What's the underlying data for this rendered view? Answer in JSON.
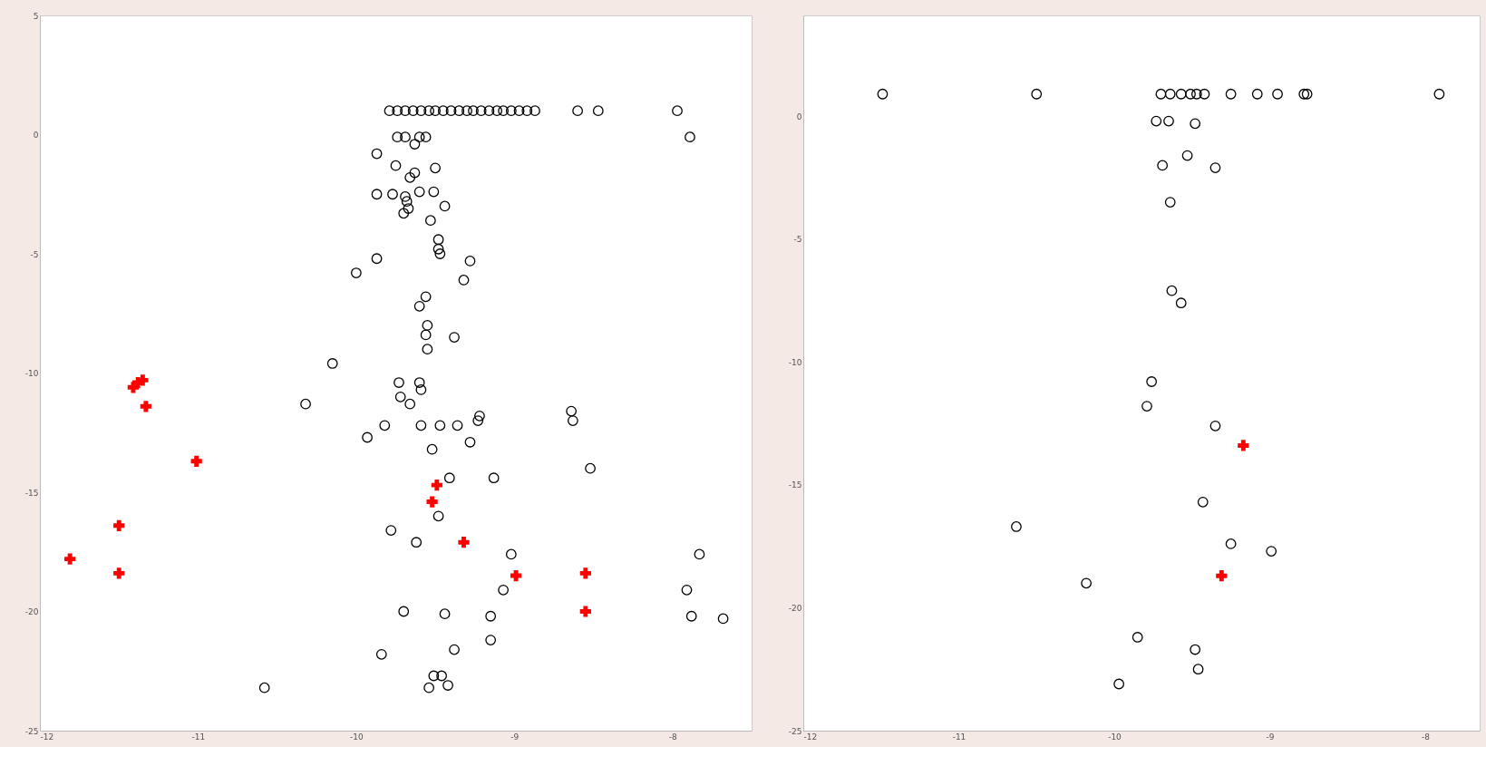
{
  "chart_data": [
    {
      "type": "scatter",
      "xlim": [
        -12,
        -7.5
      ],
      "ylim": [
        -25,
        5
      ],
      "xticks": [
        -12,
        -11,
        -10,
        -9,
        -8
      ],
      "yticks": [
        5,
        0,
        -5,
        -10,
        -15,
        -20,
        -25
      ],
      "series": [
        {
          "color": "#000000",
          "marker": "circle",
          "x": [
            -9.79,
            -9.74,
            -9.69,
            -9.64,
            -9.59,
            -9.54,
            -9.5,
            -9.45,
            -9.4,
            -9.35,
            -9.3,
            -9.26,
            -9.21,
            -9.16,
            -9.11,
            -9.07,
            -9.02,
            -8.97,
            -8.92,
            -8.87,
            -8.6,
            -8.47,
            -7.97,
            -7.89,
            -9.74,
            -9.69,
            -9.6,
            -9.56,
            -9.63,
            -9.87,
            -9.75,
            -9.5,
            -9.66,
            -9.63,
            -9.6,
            -9.51,
            -9.87,
            -9.77,
            -9.69,
            -9.44,
            -9.68,
            -9.67,
            -9.7,
            -9.53,
            -9.48,
            -9.48,
            -9.47,
            -9.28,
            -9.87,
            -10.0,
            -9.32,
            -9.56,
            -9.6,
            -9.55,
            -9.56,
            -9.38,
            -9.55,
            -10.15,
            -9.73,
            -9.6,
            -9.59,
            -9.72,
            -9.66,
            -10.32,
            -9.22,
            -9.23,
            -9.82,
            -9.59,
            -9.47,
            -9.36,
            -9.93,
            -9.28,
            -9.52,
            -8.64,
            -8.63,
            -8.52,
            -9.41,
            -9.13,
            -9.48,
            -9.78,
            -9.62,
            -9.02,
            -9.07,
            -7.83,
            -7.91,
            -9.7,
            -9.44,
            -9.15,
            -7.88,
            -7.68,
            -9.15,
            -9.38,
            -9.84,
            -9.51,
            -9.46,
            -9.54,
            -9.42,
            -10.58
          ],
          "values": [
            1.0,
            1.0,
            1.0,
            1.0,
            1.0,
            1.0,
            1.0,
            1.0,
            1.0,
            1.0,
            1.0,
            1.0,
            1.0,
            1.0,
            1.0,
            1.0,
            1.0,
            1.0,
            1.0,
            1.0,
            1.0,
            1.0,
            1.0,
            -0.1,
            -0.1,
            -0.1,
            -0.1,
            -0.1,
            -0.4,
            -0.8,
            -1.3,
            -1.4,
            -1.8,
            -1.6,
            -2.4,
            -2.4,
            -2.5,
            -2.5,
            -2.6,
            -3.0,
            -2.8,
            -3.1,
            -3.3,
            -3.6,
            -4.4,
            -4.8,
            -5.0,
            -5.3,
            -5.2,
            -5.8,
            -6.1,
            -6.8,
            -7.2,
            -8.0,
            -8.4,
            -8.5,
            -9.0,
            -9.6,
            -10.4,
            -10.4,
            -10.7,
            -11.0,
            -11.3,
            -11.3,
            -11.8,
            -12.0,
            -12.2,
            -12.2,
            -12.2,
            -12.2,
            -12.7,
            -12.9,
            -13.2,
            -11.6,
            -12.0,
            -14.0,
            -14.4,
            -14.4,
            -16.0,
            -16.6,
            -17.1,
            -17.6,
            -19.1,
            -17.6,
            -19.1,
            -20.0,
            -20.1,
            -20.2,
            -20.2,
            -20.3,
            -21.2,
            -21.6,
            -21.8,
            -22.7,
            -22.7,
            -23.2,
            -23.1,
            -23.2
          ]
        },
        {
          "color": "#ff0000",
          "marker": "cross",
          "x": [
            -11.35,
            -11.38,
            -11.41,
            -11.33,
            -11.01,
            -11.5,
            -11.81,
            -11.5,
            -9.49,
            -9.52,
            -9.32,
            -8.99,
            -8.55,
            -8.55
          ],
          "values": [
            -10.3,
            -10.4,
            -10.6,
            -11.4,
            -13.7,
            -16.4,
            -17.8,
            -18.4,
            -14.7,
            -15.4,
            -17.1,
            -18.5,
            -18.4,
            -20.0
          ]
        }
      ]
    },
    {
      "type": "scatter",
      "xlim": [
        -12,
        -7.65
      ],
      "ylim": [
        -25,
        4.1
      ],
      "xticks": [
        -12,
        -11,
        -10,
        -9,
        -8
      ],
      "yticks": [
        0,
        -5,
        -10,
        -15,
        -20,
        -25
      ],
      "series": [
        {
          "color": "#000000",
          "marker": "circle",
          "x": [
            -11.49,
            -10.5,
            -9.7,
            -9.64,
            -9.57,
            -9.51,
            -9.47,
            -9.42,
            -9.25,
            -9.08,
            -8.95,
            -8.78,
            -8.76,
            -7.91,
            -9.73,
            -9.65,
            -9.48,
            -9.53,
            -9.69,
            -9.35,
            -9.64,
            -9.63,
            -9.57,
            -9.76,
            -9.79,
            -9.35,
            -9.43,
            -10.63,
            -9.25,
            -8.99,
            -10.18,
            -9.85,
            -9.48,
            -9.46,
            -9.97
          ],
          "values": [
            0.9,
            0.9,
            0.9,
            0.9,
            0.9,
            0.9,
            0.9,
            0.9,
            0.9,
            0.9,
            0.9,
            0.9,
            0.9,
            0.9,
            -0.2,
            -0.2,
            -0.3,
            -1.6,
            -2.0,
            -2.1,
            -3.5,
            -7.1,
            -7.6,
            -10.8,
            -11.8,
            -12.6,
            -15.7,
            -16.7,
            -17.4,
            -17.7,
            -19.0,
            -21.2,
            -21.7,
            -22.5,
            -23.1
          ]
        },
        {
          "color": "#ff0000",
          "marker": "cross",
          "x": [
            -9.17,
            -9.31
          ],
          "values": [
            -13.4,
            -18.7
          ]
        }
      ]
    }
  ]
}
